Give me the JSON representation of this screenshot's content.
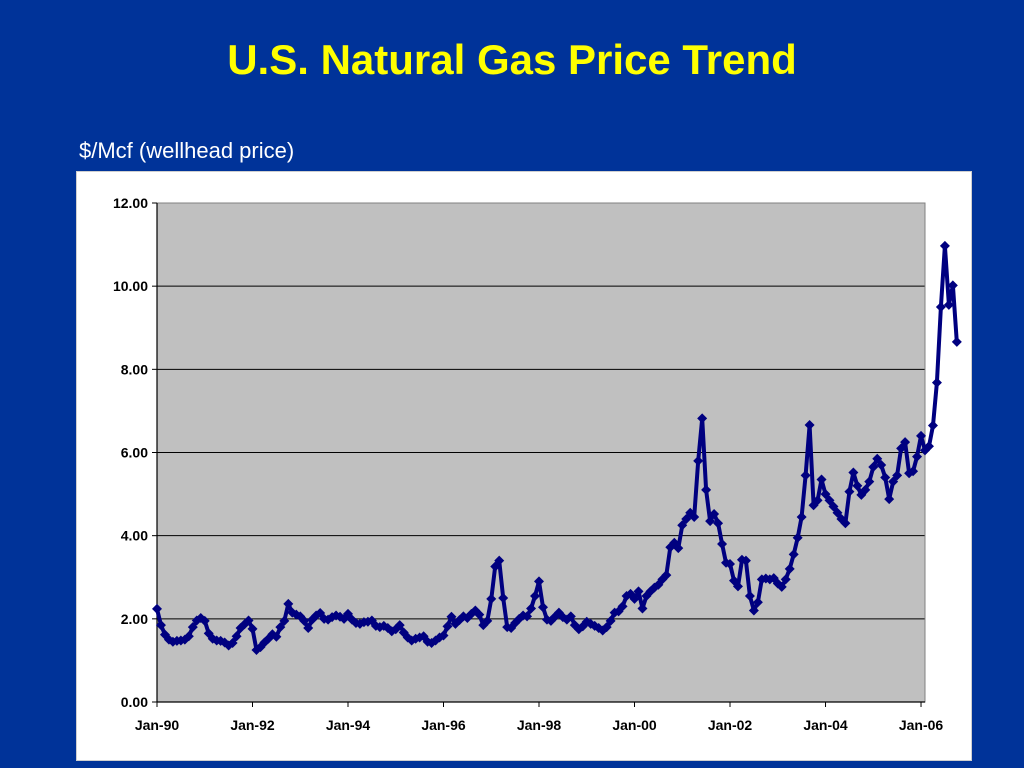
{
  "title": "U.S. Natural Gas Price Trend",
  "unit_label": "$/Mcf (wellhead price)",
  "colors": {
    "background": "#003399",
    "title": "#ffff00",
    "plot_area": "#c0c0c0",
    "series_line": "#000080"
  },
  "chart_data": {
    "type": "line",
    "title": "",
    "xlabel": "",
    "ylabel": "",
    "ylim": [
      0,
      12
    ],
    "y_ticks": [
      "0.00",
      "2.00",
      "4.00",
      "6.00",
      "8.00",
      "10.00",
      "12.00"
    ],
    "x_ticks": [
      "Jan-90",
      "Jan-92",
      "Jan-94",
      "Jan-96",
      "Jan-98",
      "Jan-00",
      "Jan-02",
      "Jan-04",
      "Jan-06"
    ],
    "xlim": [
      "Jan-90",
      "Feb-06"
    ],
    "grid": "horizontal",
    "legend": "none",
    "marker": "diamond",
    "series": [
      {
        "points": [
          [
            "Jan-90",
            2.24
          ],
          [
            "Feb-90",
            1.85
          ],
          [
            "Mar-90",
            1.62
          ],
          [
            "Apr-90",
            1.5
          ],
          [
            "May-90",
            1.45
          ],
          [
            "Jun-90",
            1.47
          ],
          [
            "Jul-90",
            1.48
          ],
          [
            "Aug-90",
            1.5
          ],
          [
            "Sep-90",
            1.58
          ],
          [
            "Oct-90",
            1.8
          ],
          [
            "Nov-90",
            1.96
          ],
          [
            "Dec-90",
            2.02
          ],
          [
            "Jan-91",
            1.95
          ],
          [
            "Feb-91",
            1.65
          ],
          [
            "Mar-91",
            1.52
          ],
          [
            "Apr-91",
            1.48
          ],
          [
            "May-91",
            1.47
          ],
          [
            "Jun-91",
            1.43
          ],
          [
            "Jul-91",
            1.36
          ],
          [
            "Aug-91",
            1.42
          ],
          [
            "Sep-91",
            1.58
          ],
          [
            "Oct-91",
            1.78
          ],
          [
            "Nov-91",
            1.87
          ],
          [
            "Dec-91",
            1.96
          ],
          [
            "Jan-92",
            1.76
          ],
          [
            "Feb-92",
            1.25
          ],
          [
            "Mar-92",
            1.32
          ],
          [
            "Apr-92",
            1.43
          ],
          [
            "May-92",
            1.52
          ],
          [
            "Jun-92",
            1.63
          ],
          [
            "Jul-92",
            1.57
          ],
          [
            "Aug-92",
            1.8
          ],
          [
            "Sep-92",
            1.95
          ],
          [
            "Oct-92",
            2.36
          ],
          [
            "Nov-92",
            2.15
          ],
          [
            "Dec-92",
            2.1
          ],
          [
            "Jan-93",
            2.06
          ],
          [
            "Feb-93",
            1.95
          ],
          [
            "Mar-93",
            1.78
          ],
          [
            "Apr-93",
            1.98
          ],
          [
            "May-93",
            2.08
          ],
          [
            "Jun-93",
            2.14
          ],
          [
            "Jul-93",
            2.0
          ],
          [
            "Aug-93",
            1.98
          ],
          [
            "Sep-93",
            2.04
          ],
          [
            "Oct-93",
            2.08
          ],
          [
            "Nov-93",
            2.05
          ],
          [
            "Dec-93",
            2.0
          ],
          [
            "Jan-94",
            2.12
          ],
          [
            "Feb-94",
            1.98
          ],
          [
            "Mar-94",
            1.9
          ],
          [
            "Apr-94",
            1.88
          ],
          [
            "May-94",
            1.92
          ],
          [
            "Jun-94",
            1.93
          ],
          [
            "Jul-94",
            1.96
          ],
          [
            "Aug-94",
            1.83
          ],
          [
            "Sep-94",
            1.8
          ],
          [
            "Oct-94",
            1.83
          ],
          [
            "Nov-94",
            1.78
          ],
          [
            "Dec-94",
            1.7
          ],
          [
            "Jan-95",
            1.75
          ],
          [
            "Feb-95",
            1.85
          ],
          [
            "Mar-95",
            1.67
          ],
          [
            "Apr-95",
            1.55
          ],
          [
            "May-95",
            1.48
          ],
          [
            "Jun-95",
            1.52
          ],
          [
            "Jul-95",
            1.55
          ],
          [
            "Aug-95",
            1.58
          ],
          [
            "Sep-95",
            1.45
          ],
          [
            "Oct-95",
            1.42
          ],
          [
            "Nov-95",
            1.48
          ],
          [
            "Dec-95",
            1.55
          ],
          [
            "Jan-96",
            1.6
          ],
          [
            "Feb-96",
            1.82
          ],
          [
            "Mar-96",
            2.05
          ],
          [
            "Apr-96",
            1.88
          ],
          [
            "May-96",
            1.97
          ],
          [
            "Jun-96",
            2.06
          ],
          [
            "Jul-96",
            2.02
          ],
          [
            "Aug-96",
            2.12
          ],
          [
            "Sep-96",
            2.2
          ],
          [
            "Oct-96",
            2.1
          ],
          [
            "Nov-96",
            1.85
          ],
          [
            "Dec-96",
            1.95
          ],
          [
            "Jan-97",
            2.48
          ],
          [
            "Feb-97",
            3.26
          ],
          [
            "Mar-97",
            3.4
          ],
          [
            "Apr-97",
            2.5
          ],
          [
            "May-97",
            1.8
          ],
          [
            "Jun-97",
            1.78
          ],
          [
            "Jul-97",
            1.9
          ],
          [
            "Aug-97",
            2.0
          ],
          [
            "Sep-97",
            2.08
          ],
          [
            "Oct-97",
            2.06
          ],
          [
            "Nov-97",
            2.25
          ],
          [
            "Dec-97",
            2.55
          ],
          [
            "Jan-98",
            2.9
          ],
          [
            "Feb-98",
            2.28
          ],
          [
            "Mar-98",
            1.98
          ],
          [
            "Apr-98",
            1.95
          ],
          [
            "May-98",
            2.05
          ],
          [
            "Jun-98",
            2.15
          ],
          [
            "Jul-98",
            2.04
          ],
          [
            "Aug-98",
            1.98
          ],
          [
            "Sep-98",
            2.06
          ],
          [
            "Oct-98",
            1.85
          ],
          [
            "Nov-98",
            1.75
          ],
          [
            "Dec-98",
            1.82
          ],
          [
            "Jan-99",
            1.93
          ],
          [
            "Feb-99",
            1.88
          ],
          [
            "Mar-99",
            1.83
          ],
          [
            "Apr-99",
            1.78
          ],
          [
            "May-99",
            1.72
          ],
          [
            "Jun-99",
            1.8
          ],
          [
            "Jul-99",
            1.95
          ],
          [
            "Aug-99",
            2.15
          ],
          [
            "Sep-99",
            2.18
          ],
          [
            "Oct-99",
            2.3
          ],
          [
            "Nov-99",
            2.55
          ],
          [
            "Dec-99",
            2.6
          ],
          [
            "Jan-00",
            2.48
          ],
          [
            "Feb-00",
            2.66
          ],
          [
            "Mar-00",
            2.25
          ],
          [
            "Apr-00",
            2.55
          ],
          [
            "May-00",
            2.66
          ],
          [
            "Jun-00",
            2.75
          ],
          [
            "Jul-00",
            2.82
          ],
          [
            "Aug-00",
            2.95
          ],
          [
            "Sep-00",
            3.05
          ],
          [
            "Oct-00",
            3.72
          ],
          [
            "Nov-00",
            3.83
          ],
          [
            "Dec-00",
            3.7
          ],
          [
            "Jan-01",
            4.25
          ],
          [
            "Feb-01",
            4.4
          ],
          [
            "Mar-01",
            4.55
          ],
          [
            "Apr-01",
            4.45
          ],
          [
            "May-01",
            5.8
          ],
          [
            "Jun-01",
            6.82
          ],
          [
            "Jul-01",
            5.1
          ],
          [
            "Aug-01",
            4.35
          ],
          [
            "Sep-01",
            4.52
          ],
          [
            "Oct-01",
            4.3
          ],
          [
            "Nov-01",
            3.8
          ],
          [
            "Dec-01",
            3.35
          ],
          [
            "Jan-02",
            3.32
          ],
          [
            "Feb-02",
            2.92
          ],
          [
            "Mar-02",
            2.78
          ],
          [
            "Apr-02",
            3.42
          ],
          [
            "May-02",
            3.4
          ],
          [
            "Jun-02",
            2.55
          ],
          [
            "Jul-02",
            2.2
          ],
          [
            "Aug-02",
            2.4
          ],
          [
            "Sep-02",
            2.95
          ],
          [
            "Oct-02",
            2.97
          ],
          [
            "Nov-02",
            2.95
          ],
          [
            "Dec-02",
            2.98
          ],
          [
            "Jan-03",
            2.85
          ],
          [
            "Feb-03",
            2.77
          ],
          [
            "Mar-03",
            2.95
          ],
          [
            "Apr-03",
            3.2
          ],
          [
            "May-03",
            3.55
          ],
          [
            "Jun-03",
            3.95
          ],
          [
            "Jul-03",
            4.45
          ],
          [
            "Aug-03",
            5.45
          ],
          [
            "Sep-03",
            6.66
          ],
          [
            "Oct-03",
            4.73
          ],
          [
            "Nov-03",
            4.85
          ],
          [
            "Dec-03",
            5.35
          ],
          [
            "Jan-04",
            5.0
          ],
          [
            "Feb-04",
            4.85
          ],
          [
            "Mar-04",
            4.7
          ],
          [
            "Apr-04",
            4.55
          ],
          [
            "May-04",
            4.4
          ],
          [
            "Jun-04",
            4.3
          ],
          [
            "Jul-04",
            5.06
          ],
          [
            "Aug-04",
            5.52
          ],
          [
            "Sep-04",
            5.2
          ],
          [
            "Oct-04",
            4.98
          ],
          [
            "Nov-04",
            5.1
          ],
          [
            "Dec-04",
            5.3
          ],
          [
            "Jan-05",
            5.65
          ],
          [
            "Feb-05",
            5.85
          ],
          [
            "Mar-05",
            5.7
          ],
          [
            "Apr-05",
            5.4
          ],
          [
            "May-05",
            4.88
          ],
          [
            "Jun-05",
            5.3
          ],
          [
            "Jul-05",
            5.45
          ],
          [
            "Aug-05",
            6.1
          ],
          [
            "Sep-05",
            6.25
          ],
          [
            "Oct-05",
            5.5
          ],
          [
            "Nov-05",
            5.55
          ],
          [
            "Dec-05",
            5.9
          ],
          [
            "Jan-06",
            6.4
          ],
          [
            "Feb-06",
            6.05
          ],
          [
            "Mar-06",
            6.15
          ],
          [
            "Apr-06",
            6.65
          ],
          [
            "May-06",
            7.68
          ],
          [
            "Jun-06",
            9.5
          ],
          [
            "Jul-06",
            10.97
          ],
          [
            "Aug-06",
            9.55
          ],
          [
            "Sep-06",
            10.02
          ],
          [
            "Oct-06",
            8.66
          ]
        ]
      }
    ]
  }
}
